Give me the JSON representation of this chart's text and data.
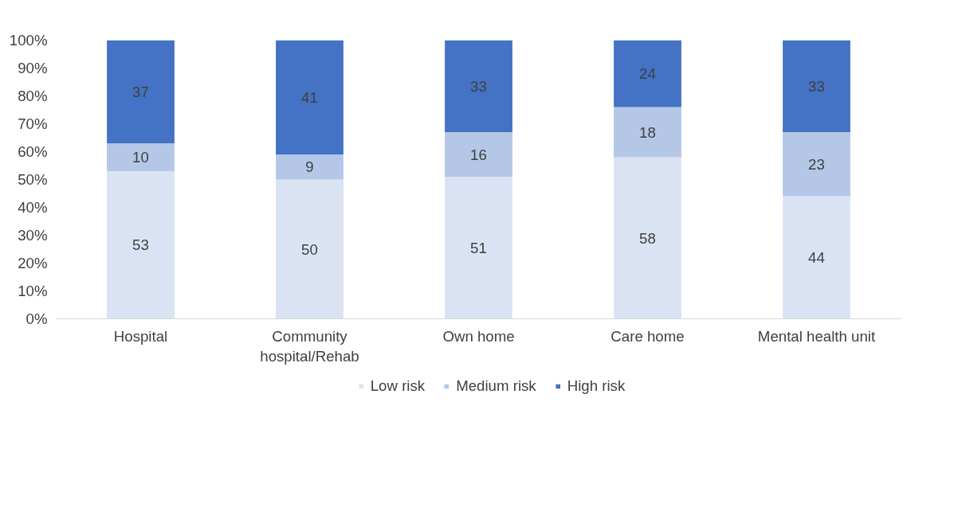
{
  "chart_data": {
    "type": "bar",
    "stacked": true,
    "categories": [
      "Hospital",
      "Community hospital/Rehab",
      "Own home",
      "Care home",
      "Mental health unit"
    ],
    "series": [
      {
        "name": "Low risk",
        "color": "#dae3f3",
        "values": [
          53,
          50,
          51,
          58,
          44
        ]
      },
      {
        "name": "Medium risk",
        "color": "#b4c7e7",
        "values": [
          10,
          9,
          16,
          18,
          23
        ]
      },
      {
        "name": "High risk",
        "color": "#4472c4",
        "values": [
          37,
          41,
          33,
          24,
          33
        ]
      }
    ],
    "ylim": [
      0,
      100
    ],
    "yticks": [
      {
        "value": 0,
        "label": "0%"
      },
      {
        "value": 10,
        "label": "10%"
      },
      {
        "value": 20,
        "label": "20%"
      },
      {
        "value": 30,
        "label": "30%"
      },
      {
        "value": 40,
        "label": "40%"
      },
      {
        "value": 50,
        "label": "50%"
      },
      {
        "value": 60,
        "label": "60%"
      },
      {
        "value": 70,
        "label": "70%"
      },
      {
        "value": 80,
        "label": "80%"
      },
      {
        "value": 90,
        "label": "90%"
      },
      {
        "value": 100,
        "label": "100%"
      }
    ],
    "data_labels": true,
    "grid": false,
    "legend": "bottom"
  }
}
